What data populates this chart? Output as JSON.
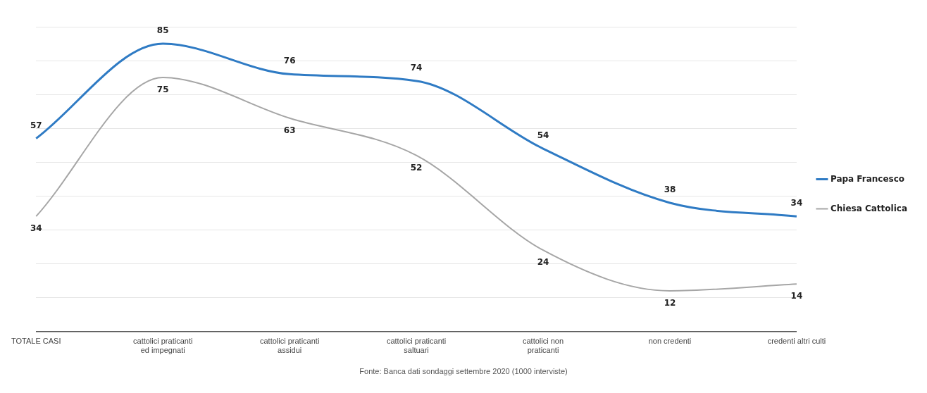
{
  "chart_data": {
    "type": "line",
    "categories": [
      "TOTALE CASI",
      "cattolici praticanti ed impegnati",
      "cattolici praticanti assidui",
      "cattolici praticanti saltuari",
      "cattolici non praticanti",
      "non credenti",
      "credenti altri culti"
    ],
    "series": [
      {
        "name": "Papa Francesco",
        "color": "#2f7bc4",
        "values": [
          57,
          85,
          76,
          74,
          54,
          38,
          34
        ]
      },
      {
        "name": "Chiesa Cattolica",
        "color": "#a6a6a6",
        "values": [
          34,
          75,
          63,
          52,
          24,
          12,
          14
        ]
      }
    ],
    "ylim": [
      0,
      90
    ],
    "yticks": [
      {
        "value": 0,
        "label": null
      },
      {
        "value": 10,
        "label": null
      },
      {
        "value": 20,
        "label": null
      },
      {
        "value": 30,
        "label": null
      },
      {
        "value": 40,
        "label": null
      },
      {
        "value": 50,
        "label": null
      },
      {
        "value": 60,
        "label": null
      },
      {
        "value": 70,
        "label": null
      },
      {
        "value": 80,
        "label": null
      },
      {
        "value": 90,
        "label": null
      }
    ],
    "tick_labels": "x",
    "grid": "y",
    "legend": "right",
    "data_labels": true,
    "marker": "none",
    "line_style": "solid",
    "annotations": [
      "Fonte: Banca dati sondaggi settembre 2020  (1000 interviste)"
    ]
  }
}
